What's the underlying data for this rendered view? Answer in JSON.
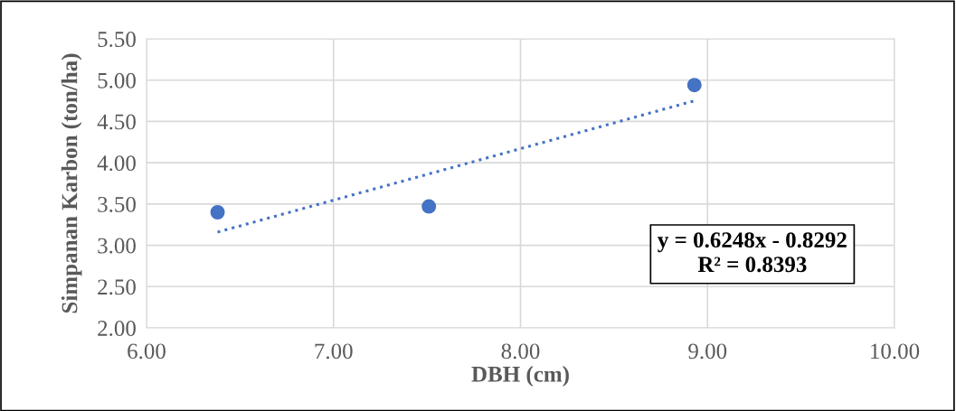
{
  "chart_data": {
    "type": "scatter",
    "xlabel": "DBH (cm)",
    "ylabel": "Simpanan Karbon (ton/ha)",
    "series": [
      {
        "color": "#4472c4",
        "x": [
          6.38,
          7.51,
          8.93
        ],
        "values": [
          3.4,
          3.47,
          4.94
        ],
        "marker": "circle"
      },
      {
        "type": "line",
        "color": "#4472c4",
        "x": [
          6.38,
          8.93
        ],
        "values": [
          3.16,
          4.75
        ],
        "line_style": "dotted",
        "marker": "none"
      }
    ],
    "xlim": [
      6,
      10
    ],
    "xticks": [
      {
        "value": 6,
        "label": "6.00"
      },
      {
        "value": 7,
        "label": "7.00"
      },
      {
        "value": 8,
        "label": "8.00"
      },
      {
        "value": 9,
        "label": "9.00"
      },
      {
        "value": 10,
        "label": "10.00"
      }
    ],
    "ylim": [
      2,
      5.5
    ],
    "yticks": [
      {
        "value": 2,
        "label": "2.00"
      },
      {
        "value": 2.5,
        "label": "2.50"
      },
      {
        "value": 3,
        "label": "3.00"
      },
      {
        "value": 3.5,
        "label": "3.50"
      },
      {
        "value": 4,
        "label": "4.00"
      },
      {
        "value": 4.5,
        "label": "4.50"
      },
      {
        "value": 5,
        "label": "5.00"
      },
      {
        "value": 5.5,
        "label": "5.50"
      }
    ],
    "grid": true,
    "annotations": [
      "y = 0.6248x - 0.8292\nR² = 0.8393"
    ]
  }
}
